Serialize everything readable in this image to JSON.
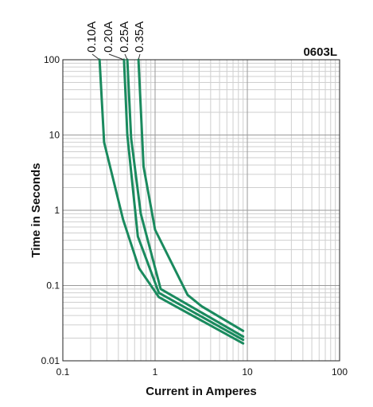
{
  "chart_data": {
    "type": "line",
    "title": "0603L",
    "xlabel": "Current in Amperes",
    "ylabel": "Time in Seconds",
    "x_scale": "log",
    "y_scale": "log",
    "xlim": [
      0.1,
      100
    ],
    "ylim": [
      0.01,
      100
    ],
    "grid": true,
    "x_ticks": [
      "0.1",
      "1",
      "10",
      "100"
    ],
    "y_ticks": [
      "100",
      "10",
      "1",
      "0.1",
      "0.01"
    ],
    "line_color": "#1a8a5e",
    "series": [
      {
        "name": "0.10A",
        "x": [
          0.25,
          0.28,
          0.45,
          0.67,
          1.1,
          9.0
        ],
        "y": [
          100,
          8,
          0.75,
          0.17,
          0.07,
          0.017
        ]
      },
      {
        "name": "0.20A",
        "x": [
          0.46,
          0.5,
          0.65,
          1.1,
          9.0
        ],
        "y": [
          100,
          10,
          0.45,
          0.08,
          0.019
        ]
      },
      {
        "name": "0.25A",
        "x": [
          0.5,
          0.55,
          0.7,
          1.15,
          9.0
        ],
        "y": [
          100,
          9,
          0.9,
          0.09,
          0.021
        ]
      },
      {
        "name": "0.35A",
        "x": [
          0.66,
          0.75,
          1.0,
          2.25,
          3.2,
          9.0
        ],
        "y": [
          100,
          3.8,
          0.55,
          0.075,
          0.053,
          0.025
        ]
      }
    ]
  }
}
